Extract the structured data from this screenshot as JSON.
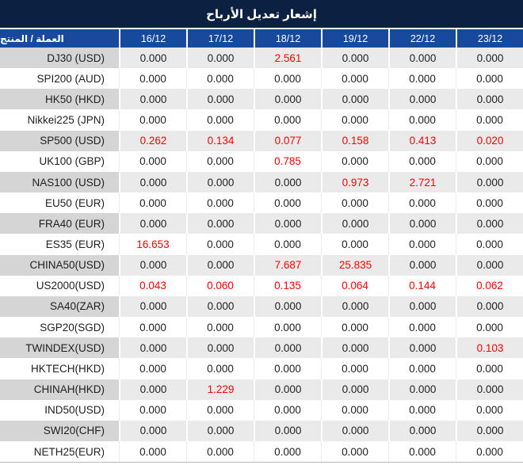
{
  "title": "إشعار تعديل الأرباح",
  "header": {
    "product_label": "العملة / المنتج",
    "dates": [
      "16/12",
      "17/12",
      "18/12",
      "19/12",
      "22/12",
      "23/12"
    ]
  },
  "rows": [
    {
      "product": "DJ30 (USD)",
      "values": [
        "0.000",
        "0.000",
        "2.561",
        "0.000",
        "0.000",
        "0.000"
      ],
      "red": [
        false,
        false,
        true,
        false,
        false,
        false
      ]
    },
    {
      "product": "SPI200 (AUD)",
      "values": [
        "0.000",
        "0.000",
        "0.000",
        "0.000",
        "0.000",
        "0.000"
      ],
      "red": [
        false,
        false,
        false,
        false,
        false,
        false
      ]
    },
    {
      "product": "HK50 (HKD)",
      "values": [
        "0.000",
        "0.000",
        "0.000",
        "0.000",
        "0.000",
        "0.000"
      ],
      "red": [
        false,
        false,
        false,
        false,
        false,
        false
      ]
    },
    {
      "product": "Nikkei225 (JPN)",
      "values": [
        "0.000",
        "0.000",
        "0.000",
        "0.000",
        "0.000",
        "0.000"
      ],
      "red": [
        false,
        false,
        false,
        false,
        false,
        false
      ]
    },
    {
      "product": "SP500 (USD)",
      "values": [
        "0.262",
        "0.134",
        "0.077",
        "0.158",
        "0.413",
        "0.020"
      ],
      "red": [
        true,
        true,
        true,
        true,
        true,
        true
      ]
    },
    {
      "product": "UK100 (GBP)",
      "values": [
        "0.000",
        "0.000",
        "0.785",
        "0.000",
        "0.000",
        "0.000"
      ],
      "red": [
        false,
        false,
        true,
        false,
        false,
        false
      ]
    },
    {
      "product": "NAS100 (USD)",
      "values": [
        "0.000",
        "0.000",
        "0.000",
        "0.973",
        "2.721",
        "0.000"
      ],
      "red": [
        false,
        false,
        false,
        true,
        true,
        false
      ]
    },
    {
      "product": "EU50 (EUR)",
      "values": [
        "0.000",
        "0.000",
        "0.000",
        "0.000",
        "0.000",
        "0.000"
      ],
      "red": [
        false,
        false,
        false,
        false,
        false,
        false
      ]
    },
    {
      "product": "FRA40 (EUR)",
      "values": [
        "0.000",
        "0.000",
        "0.000",
        "0.000",
        "0.000",
        "0.000"
      ],
      "red": [
        false,
        false,
        false,
        false,
        false,
        false
      ]
    },
    {
      "product": "ES35 (EUR)",
      "values": [
        "16.653",
        "0.000",
        "0.000",
        "0.000",
        "0.000",
        "0.000"
      ],
      "red": [
        true,
        false,
        false,
        false,
        false,
        false
      ]
    },
    {
      "product": "CHINA50(USD)",
      "values": [
        "0.000",
        "0.000",
        "7.687",
        "25.835",
        "0.000",
        "0.000"
      ],
      "red": [
        false,
        false,
        true,
        true,
        false,
        false
      ]
    },
    {
      "product": "US2000(USD)",
      "values": [
        "0.043",
        "0.060",
        "0.135",
        "0.064",
        "0.144",
        "0.062"
      ],
      "red": [
        true,
        true,
        true,
        true,
        true,
        true
      ]
    },
    {
      "product": "SA40(ZAR)",
      "values": [
        "0.000",
        "0.000",
        "0.000",
        "0.000",
        "0.000",
        "0.000"
      ],
      "red": [
        false,
        false,
        false,
        false,
        false,
        false
      ]
    },
    {
      "product": "SGP20(SGD)",
      "values": [
        "0.000",
        "0.000",
        "0.000",
        "0.000",
        "0.000",
        "0.000"
      ],
      "red": [
        false,
        false,
        false,
        false,
        false,
        false
      ]
    },
    {
      "product": "TWINDEX(USD)",
      "values": [
        "0.000",
        "0.000",
        "0.000",
        "0.000",
        "0.000",
        "0.103"
      ],
      "red": [
        false,
        false,
        false,
        false,
        false,
        true
      ]
    },
    {
      "product": "HKTECH(HKD)",
      "values": [
        "0.000",
        "0.000",
        "0.000",
        "0.000",
        "0.000",
        "0.000"
      ],
      "red": [
        false,
        false,
        false,
        false,
        false,
        false
      ]
    },
    {
      "product": "CHINAH(HKD)",
      "values": [
        "0.000",
        "1.229",
        "0.000",
        "0.000",
        "0.000",
        "0.000"
      ],
      "red": [
        false,
        true,
        false,
        false,
        false,
        false
      ]
    },
    {
      "product": "IND50(USD)",
      "values": [
        "0.000",
        "0.000",
        "0.000",
        "0.000",
        "0.000",
        "0.000"
      ],
      "red": [
        false,
        false,
        false,
        false,
        false,
        false
      ]
    },
    {
      "product": "SWI20(CHF)",
      "values": [
        "0.000",
        "0.000",
        "0.000",
        "0.000",
        "0.000",
        "0.000"
      ],
      "red": [
        false,
        false,
        false,
        false,
        false,
        false
      ]
    },
    {
      "product": "NETH25(EUR)",
      "values": [
        "0.000",
        "0.000",
        "0.000",
        "0.000",
        "0.000",
        "0.000"
      ],
      "red": [
        false,
        false,
        false,
        false,
        false,
        false
      ]
    }
  ],
  "colors": {
    "title_bar_bg": "#0C2142",
    "header_bg": "#174A9C",
    "row_alt_bg": "#EAEAEA",
    "row_alt_label_bg": "#D5D5D5",
    "highlight_red": "#FF0000",
    "text_dark": "#1F1F1F"
  }
}
